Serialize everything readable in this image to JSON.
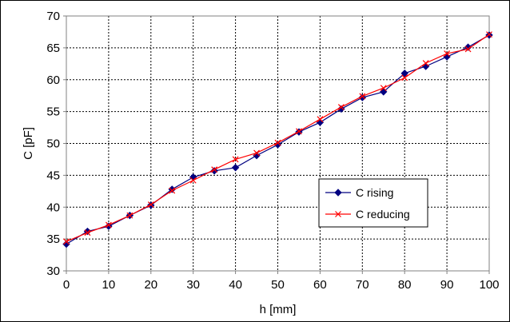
{
  "chart_data": {
    "type": "line",
    "title": "",
    "xlabel": "h [mm]",
    "ylabel": "C [pF]",
    "xlim": [
      0,
      100
    ],
    "ylim": [
      30,
      70
    ],
    "xticks": [
      0,
      10,
      20,
      30,
      40,
      50,
      60,
      70,
      80,
      90,
      100
    ],
    "yticks": [
      30,
      35,
      40,
      45,
      50,
      55,
      60,
      65,
      70
    ],
    "grid": true,
    "legend_position": "lower-right",
    "x": [
      0,
      5,
      10,
      15,
      20,
      25,
      30,
      35,
      40,
      45,
      50,
      55,
      60,
      65,
      70,
      75,
      80,
      85,
      90,
      95,
      100
    ],
    "series": [
      {
        "name": "C rising",
        "color": "#000080",
        "marker": "diamond",
        "values": [
          34.2,
          36.2,
          37.0,
          38.7,
          40.3,
          42.8,
          44.7,
          45.7,
          46.2,
          48.1,
          49.8,
          51.8,
          53.3,
          55.4,
          57.2,
          58.1,
          61.0,
          62.1,
          63.6,
          65.1,
          67.0
        ]
      },
      {
        "name": "C reducing",
        "color": "#ff0000",
        "marker": "x",
        "values": [
          34.6,
          36.0,
          37.2,
          38.7,
          40.4,
          42.6,
          44.2,
          45.9,
          47.5,
          48.5,
          50.1,
          51.9,
          53.8,
          55.7,
          57.4,
          58.7,
          60.3,
          62.6,
          64.1,
          64.8,
          67.1
        ]
      }
    ]
  }
}
